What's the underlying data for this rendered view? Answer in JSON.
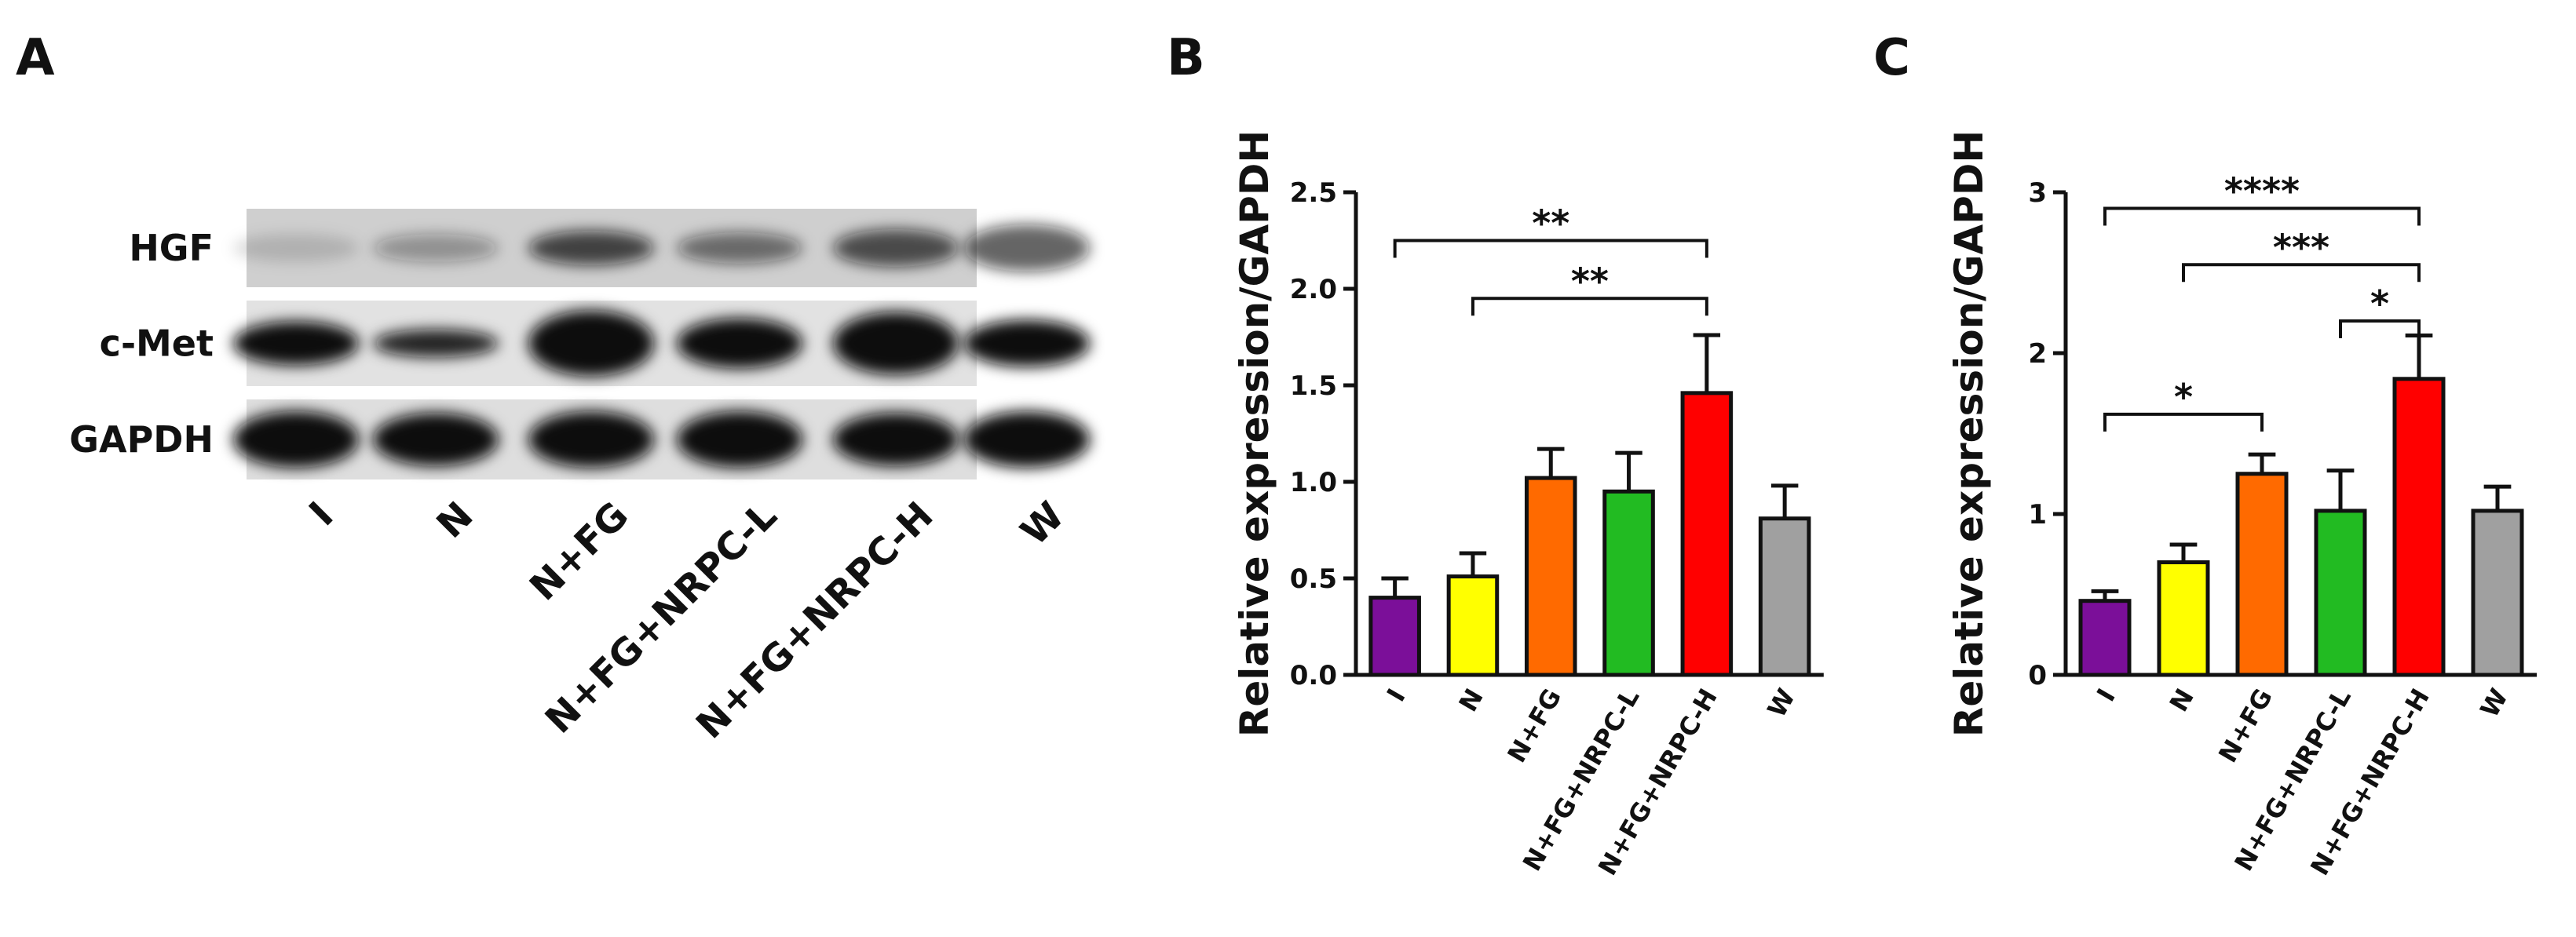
{
  "blot": {
    "panel_label": "A",
    "rows": [
      "HGF",
      "c-Met",
      "GAPDH"
    ],
    "lanes": [
      "I",
      "N",
      "N+FG",
      "N+FG+NRPC-L",
      "N+FG+NRPC-H",
      "W"
    ]
  },
  "chart_data": [
    {
      "type": "bar",
      "panel_label": "B",
      "ylabel": "Relative expression/GAPDH",
      "categories": [
        "I",
        "N",
        "N+FG",
        "N+FG+NRPC-L",
        "N+FG+NRPC-H",
        "W"
      ],
      "values": [
        0.4,
        0.51,
        1.02,
        0.95,
        1.46,
        0.81
      ],
      "errors": [
        0.1,
        0.12,
        0.15,
        0.2,
        0.3,
        0.17
      ],
      "colors": [
        "#7b0f99",
        "#ffff00",
        "#ff6a00",
        "#22bb22",
        "#ff0000",
        "#a0a0a0"
      ],
      "ylim": [
        0,
        2.5
      ],
      "yticks": [
        {
          "value": 0,
          "label": "0.0"
        },
        0.5,
        {
          "value": 1,
          "label": "1.0"
        },
        1.5,
        {
          "value": 2,
          "label": "2.0"
        },
        2.5
      ],
      "annotations": [
        {
          "text": "**",
          "from": 0,
          "to": 4,
          "y": 2.25
        },
        {
          "text": "**",
          "from": 1,
          "to": 4,
          "y": 1.95
        }
      ]
    },
    {
      "type": "bar",
      "panel_label": "C",
      "ylabel": "Relative expression/GAPDH",
      "categories": [
        "I",
        "N",
        "N+FG",
        "N+FG+NRPC-L",
        "N+FG+NRPC-H",
        "W"
      ],
      "values": [
        0.46,
        0.7,
        1.25,
        1.02,
        1.84,
        1.02
      ],
      "errors": [
        0.06,
        0.11,
        0.12,
        0.25,
        0.27,
        0.15
      ],
      "colors": [
        "#7b0f99",
        "#ffff00",
        "#ff6a00",
        "#22bb22",
        "#ff0000",
        "#a0a0a0"
      ],
      "ylim": [
        0,
        3
      ],
      "yticks": [
        0,
        1,
        2,
        3
      ],
      "annotations": [
        {
          "text": "****",
          "from": 0,
          "to": 4,
          "y": 2.9
        },
        {
          "text": "***",
          "from": 1,
          "to": 4,
          "y": 2.55
        },
        {
          "text": "*",
          "from": 3,
          "to": 4,
          "y": 2.2
        },
        {
          "text": "*",
          "from": 0,
          "to": 2,
          "y": 1.62
        }
      ]
    }
  ]
}
